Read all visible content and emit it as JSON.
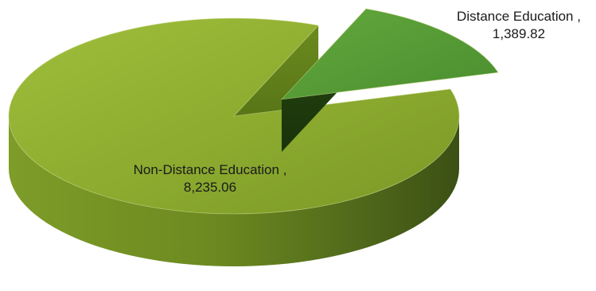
{
  "chart_data": {
    "type": "pie",
    "title": "",
    "slices": [
      {
        "label": "Non-Distance Education",
        "value": 8235.06,
        "value_text": "8,235.06",
        "label_text": "Non-Distance Education ,",
        "exploded": false,
        "top_color": "#8dac30",
        "side_color": "#6e8a22"
      },
      {
        "label": "Distance Education",
        "value": 1389.82,
        "value_text": "1,389.82",
        "label_text": "Distance Education ,",
        "exploded": true,
        "top_color": "#549a36",
        "side_color": "#2c5214"
      }
    ],
    "legend": "none",
    "style": "3d-exploded"
  }
}
